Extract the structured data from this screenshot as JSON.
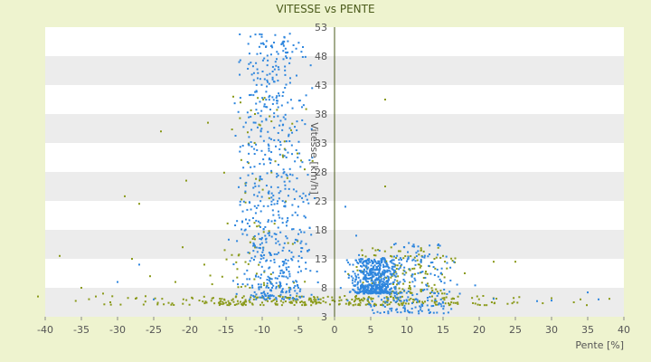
{
  "chart_data": {
    "type": "scatter",
    "title": "VITESSE vs PENTE",
    "xlabel": "Pente [%]",
    "ylabel": "Vitesse [km/h]",
    "xlim": [
      -40,
      40
    ],
    "ylim": [
      3,
      53
    ],
    "x_ticks": [
      "-40",
      "-35",
      "-30",
      "-25",
      "-20",
      "-15",
      "-10",
      "-5",
      "0",
      "5",
      "10",
      "15",
      "20",
      "25",
      "30",
      "35",
      "40"
    ],
    "y_ticks": [
      "3",
      "8",
      "13",
      "18",
      "23",
      "28",
      "33",
      "38",
      "43",
      "48",
      "53"
    ],
    "grid": "horizontal alternating bands",
    "legend": "none",
    "colors": {
      "page_background": "#eef3cf",
      "plot_band_light": "#ffffff",
      "plot_band_dark": "#ececec",
      "series_blue": "#2e86de",
      "series_olive": "#8a9a1a",
      "axis": "#4a5a1a"
    },
    "series": [
      {
        "color_key": "series_blue",
        "clusters": [
          {
            "description": "downhill fan",
            "x_range": [
              -16,
              -1
            ],
            "y_range": [
              6,
              52
            ],
            "n": 650
          },
          {
            "description": "flat/uphill dense cluster",
            "x_range": [
              1,
              10
            ],
            "y_range": [
              7,
              13
            ],
            "n": 500
          },
          {
            "description": "uphill spread",
            "x_range": [
              0,
              20
            ],
            "y_range": [
              3.5,
              16
            ],
            "n": 250
          },
          {
            "description": "outliers",
            "points": [
              [
                35,
                7.2
              ],
              [
                36.5,
                6
              ],
              [
                30,
                5.8
              ],
              [
                28,
                5.7
              ],
              [
                22,
                6.1
              ],
              [
                -25,
                6
              ],
              [
                -30,
                9
              ],
              [
                -27,
                12
              ],
              [
                1.5,
                22
              ],
              [
                3,
                17
              ]
            ]
          }
        ]
      },
      {
        "color_key": "series_olive",
        "clusters": [
          {
            "description": "bottom band",
            "x_range": [
              -40,
              38
            ],
            "y_range": [
              5,
              6.6
            ],
            "n": 320
          },
          {
            "description": "downhill spread",
            "x_range": [
              -20,
              -1
            ],
            "y_range": [
              8,
              41
            ],
            "n": 90
          },
          {
            "description": "uphill spread",
            "x_range": [
              0,
              20
            ],
            "y_range": [
              7,
              15
            ],
            "n": 130
          },
          {
            "description": "outliers",
            "points": [
              [
                -41,
                6.5
              ],
              [
                -38,
                13.5
              ],
              [
                -35,
                8
              ],
              [
                -33,
                6.5
              ],
              [
                -29,
                23.8
              ],
              [
                -27,
                22.5
              ],
              [
                -24,
                35
              ],
              [
                -20.5,
                26.5
              ],
              [
                -17.5,
                36.5
              ],
              [
                -14,
                41
              ],
              [
                -13,
                40
              ],
              [
                -11,
                38
              ],
              [
                7,
                40.5
              ],
              [
                7,
                25.5
              ],
              [
                12,
                14.5
              ],
              [
                15,
                13.5
              ],
              [
                18,
                10.5
              ],
              [
                22,
                12.5
              ],
              [
                25,
                12.5
              ],
              [
                30,
                6.2
              ],
              [
                34,
                6
              ],
              [
                38,
                6.1
              ],
              [
                -32,
                7
              ],
              [
                -31,
                5.5
              ],
              [
                -28,
                13
              ],
              [
                -25.5,
                10
              ],
              [
                -22,
                9
              ],
              [
                -21,
                15
              ],
              [
                -18,
                12
              ]
            ]
          }
        ]
      }
    ]
  }
}
